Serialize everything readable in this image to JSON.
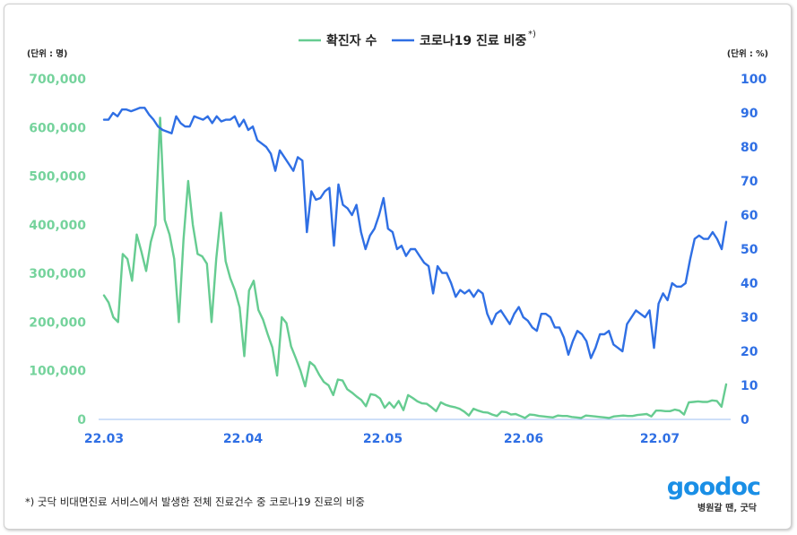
{
  "legend": {
    "confirmed": "확진자 수",
    "share": "코로나19 진료 비중",
    "share_mark": "*)"
  },
  "axis_units": {
    "left": "(단위 : 명)",
    "right": "(단위 : %)"
  },
  "footnote": "*) 굿닥 비대면진료 서비스에서 발생한 전체 진료건수 중 코로나19 진료의 비중",
  "logo": {
    "word": "goodoc",
    "tagline": "병원갈 땐, 굿닥"
  },
  "colors": {
    "confirmed": "#66cc91",
    "share": "#2f6fe4",
    "left_ticks": "#75d39c",
    "right_ticks": "#2f6fe4",
    "x_ticks": "#2f6fe4",
    "baseline": "#9dbff2"
  },
  "chart_data": {
    "type": "line",
    "x_tick_labels": [
      "22.03",
      "22.04",
      "22.05",
      "22.06",
      "22.07"
    ],
    "left_axis": {
      "ylim": [
        0,
        700000
      ],
      "ticks": [
        0,
        100000,
        200000,
        300000,
        400000,
        500000,
        600000,
        700000
      ],
      "tick_labels": [
        "0",
        "100,000",
        "200,000",
        "300,000",
        "400,000",
        "500,000",
        "600,000",
        "700,000"
      ]
    },
    "right_axis": {
      "ylim": [
        0,
        100
      ],
      "ticks": [
        0,
        10,
        20,
        30,
        40,
        50,
        60,
        70,
        80,
        90,
        100
      ],
      "tick_labels": [
        "0",
        "10",
        "20",
        "30",
        "40",
        "50",
        "60",
        "70",
        "80",
        "90",
        "100"
      ]
    },
    "series": [
      {
        "name": "확진자 수",
        "axis": "left",
        "values": [
          255000,
          240000,
          210000,
          200000,
          340000,
          330000,
          285000,
          380000,
          345000,
          305000,
          365000,
          400000,
          620000,
          410000,
          380000,
          330000,
          200000,
          370000,
          490000,
          400000,
          340000,
          335000,
          320000,
          200000,
          330000,
          425000,
          325000,
          290000,
          265000,
          230000,
          130000,
          265000,
          285000,
          225000,
          205000,
          175000,
          148000,
          90000,
          210000,
          198000,
          150000,
          126000,
          100000,
          68000,
          118000,
          110000,
          92000,
          77000,
          70000,
          50000,
          82000,
          80000,
          62000,
          55000,
          47000,
          40000,
          27000,
          52000,
          50000,
          43000,
          24000,
          35000,
          24000,
          38000,
          19000,
          50000,
          44000,
          37000,
          33000,
          32000,
          25000,
          17000,
          35000,
          30000,
          27000,
          25000,
          22000,
          16000,
          8000,
          22000,
          18000,
          15000,
          14000,
          10000,
          7000,
          16000,
          15000,
          10000,
          11000,
          7000,
          3000,
          10000,
          9000,
          7000,
          6000,
          5000,
          4000,
          8000,
          7000,
          7000,
          5000,
          4000,
          3000,
          8000,
          7000,
          6000,
          5000,
          4000,
          3000,
          6000,
          7000,
          8000,
          7000,
          7000,
          9000,
          10000,
          11000,
          6000,
          18000,
          18000,
          17000,
          17000,
          20000,
          18000,
          10000,
          35000,
          36000,
          37000,
          36000,
          36000,
          39000,
          38000,
          26000,
          72000
        ]
      },
      {
        "name": "코로나19 진료 비중",
        "axis": "right",
        "values": [
          88,
          88,
          90,
          89,
          91,
          91,
          90.5,
          91,
          91.5,
          91.5,
          89.5,
          88,
          86,
          85,
          84.5,
          84,
          89,
          87,
          86,
          86,
          89,
          88.5,
          88,
          89,
          87,
          89,
          87.5,
          88,
          88,
          89,
          86,
          88,
          85,
          86,
          82,
          81,
          80,
          78,
          73,
          79,
          77,
          75,
          73,
          77,
          76,
          55,
          67,
          64.5,
          65,
          67,
          68,
          51,
          69,
          63,
          62,
          60,
          63,
          55,
          50,
          54,
          56,
          60,
          65,
          56,
          55,
          50,
          51,
          48,
          50,
          50,
          48,
          46,
          45,
          37,
          45,
          43,
          43,
          40,
          36,
          38,
          37,
          38,
          36,
          38,
          37,
          31,
          28,
          31,
          32,
          30,
          28,
          31,
          33,
          30,
          29,
          27,
          26,
          31,
          31,
          30,
          27,
          27,
          24,
          19,
          23,
          26,
          25,
          23,
          18,
          21,
          25,
          25,
          26,
          22,
          21,
          20,
          28,
          30,
          32,
          31,
          30,
          32,
          21,
          34,
          37,
          35,
          40,
          39,
          39,
          40,
          47,
          53,
          54,
          53,
          53,
          55,
          53,
          50,
          58
        ]
      }
    ],
    "grid": false,
    "legend_position": "top-center"
  }
}
